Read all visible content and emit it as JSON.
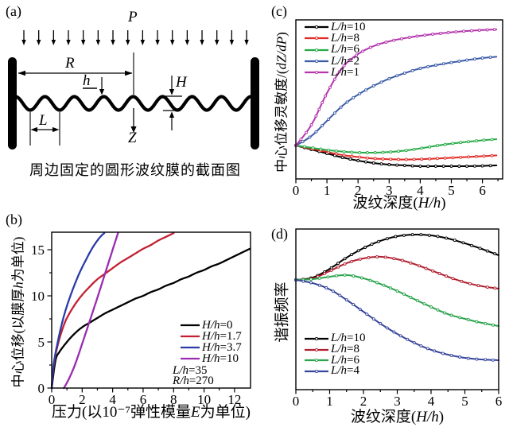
{
  "panel_a": {
    "letter": "(a)",
    "pressure_label": "P",
    "radius_label": "R",
    "thickness_label": "h",
    "depth_label": "H",
    "wavelength_label": "L",
    "deflection_label": "Z",
    "caption": "周边固定的圆形波纹膜的截面图"
  },
  "panel_b": {
    "letter": "(b)"
  },
  "panel_c": {
    "letter": "(c)"
  },
  "panel_d": {
    "letter": "(d)"
  },
  "chart_data": [
    {
      "panel": "b",
      "type": "line",
      "xlabel": "压力(以10⁻⁷弹性模量E为单位)",
      "ylabel": "中心位移(以膜厚h为单位)",
      "xlim": [
        0,
        13.05
      ],
      "ylim": [
        0,
        16.9
      ],
      "xticks": [
        0,
        2,
        4,
        6,
        8,
        10,
        12
      ],
      "yticks": [
        0,
        5,
        10,
        15
      ],
      "xminor": [
        1,
        3,
        5,
        7,
        9,
        11
      ],
      "yminor": [
        2.5,
        7.5,
        12.5
      ],
      "grid": false,
      "markers": false,
      "legend_position": "bottom-right",
      "legend_note": [
        "L/h=35",
        "R/h=270"
      ],
      "series": [
        {
          "name": "H/h=0",
          "color": "#000000",
          "x": [
            0,
            0.25,
            0.5,
            1,
            1.5,
            2,
            2.5,
            3,
            3.5,
            4,
            4.5,
            5,
            5.5,
            6,
            6.5,
            7,
            7.5,
            8,
            8.5,
            9,
            9.5,
            10,
            10.5,
            11,
            11.5,
            12,
            12.5,
            13
          ],
          "y": [
            0,
            3.0,
            3.9,
            5.0,
            5.9,
            6.6,
            7.1,
            7.6,
            8.1,
            8.5,
            8.9,
            9.3,
            9.7,
            10.0,
            10.4,
            10.7,
            11.1,
            11.4,
            11.8,
            12.1,
            12.5,
            12.8,
            13.2,
            13.5,
            13.9,
            14.3,
            14.7,
            15.1
          ]
        },
        {
          "name": "H/h=1.7",
          "color": "#c22133",
          "x": [
            0,
            0.1,
            0.25,
            0.5,
            0.75,
            1,
            1.5,
            2,
            2.5,
            3,
            3.5,
            4,
            4.5,
            5,
            5.5,
            6,
            6.5,
            7,
            7.5,
            8
          ],
          "y": [
            0,
            2.0,
            3.6,
            5.3,
            6.6,
            7.6,
            9.0,
            10.1,
            11.0,
            11.8,
            12.4,
            13.0,
            13.6,
            14.1,
            14.6,
            15.1,
            15.5,
            16.0,
            16.4,
            16.8
          ]
        },
        {
          "name": "H/h=3.7",
          "color": "#2b3ca8",
          "x": [
            0,
            0.1,
            0.25,
            0.5,
            0.75,
            1,
            1.25,
            1.5,
            1.75,
            2,
            2.25,
            2.5,
            2.75,
            3,
            3.25,
            3.45
          ],
          "y": [
            0,
            2.2,
            3.8,
            5.8,
            7.5,
            8.9,
            10.1,
            11.2,
            12.2,
            13.1,
            13.9,
            14.7,
            15.4,
            16.0,
            16.5,
            16.8
          ]
        },
        {
          "name": "H/h=10",
          "color": "#992cb0",
          "x": [
            0.8,
            1.1,
            1.5,
            2,
            2.5,
            3,
            3.5,
            4,
            4.35
          ],
          "y": [
            0,
            0.9,
            2.4,
            4.8,
            7.3,
            9.8,
            12.4,
            15.0,
            16.8
          ]
        }
      ]
    },
    {
      "panel": "c",
      "type": "line",
      "xlabel": "波纹深度(H/h)",
      "ylabel": "中心位移灵敏度/(dZ/dP)",
      "xlim": [
        0,
        6.65
      ],
      "ylim": [
        0,
        1
      ],
      "xticks": [
        0,
        1,
        2,
        3,
        4,
        5,
        6
      ],
      "yticks": [],
      "xminor": [
        0.5,
        1.5,
        2.5,
        3.5,
        4.5,
        5.5,
        6.5
      ],
      "yminor": [],
      "y_axis_unlabeled": true,
      "y_units": "normalized 0-1 of plot height (no tick labels in figure)",
      "grid": false,
      "markers": true,
      "legend_position": "top-left",
      "x_shared": [
        0,
        0.5,
        1,
        1.5,
        2,
        2.5,
        3,
        3.5,
        4,
        4.5,
        5,
        5.5,
        6,
        6.45
      ],
      "series": [
        {
          "name": "L/h=10",
          "color": "#000000",
          "y": [
            0.21,
            0.185,
            0.16,
            0.135,
            0.115,
            0.1,
            0.09,
            0.085,
            0.08,
            0.08,
            0.08,
            0.08,
            0.082,
            0.085
          ]
        },
        {
          "name": "L/h=8",
          "color": "#e12a26",
          "y": [
            0.21,
            0.19,
            0.17,
            0.15,
            0.138,
            0.128,
            0.124,
            0.122,
            0.124,
            0.128,
            0.133,
            0.138,
            0.143,
            0.148
          ]
        },
        {
          "name": "L/h=6",
          "color": "#29ab49",
          "y": [
            0.21,
            0.196,
            0.182,
            0.172,
            0.166,
            0.165,
            0.169,
            0.178,
            0.192,
            0.208,
            0.222,
            0.233,
            0.243,
            0.25
          ]
        },
        {
          "name": "L/h=2",
          "color": "#3c5ca8",
          "y": [
            0.21,
            0.27,
            0.365,
            0.46,
            0.53,
            0.585,
            0.63,
            0.665,
            0.695,
            0.715,
            0.732,
            0.747,
            0.76,
            0.768
          ]
        },
        {
          "name": "L/h=1",
          "color": "#b435ad",
          "y": [
            0.21,
            0.34,
            0.54,
            0.7,
            0.785,
            0.835,
            0.865,
            0.885,
            0.9,
            0.912,
            0.922,
            0.93,
            0.936,
            0.94
          ]
        }
      ]
    },
    {
      "panel": "d",
      "type": "line",
      "xlabel": "波纹深度(H/h)",
      "ylabel": "谐振频率",
      "xlim": [
        0,
        6
      ],
      "ylim": [
        0,
        1
      ],
      "xticks": [
        0,
        1,
        2,
        3,
        4,
        5,
        6
      ],
      "yticks": [],
      "xminor": [
        0.5,
        1.5,
        2.5,
        3.5,
        4.5,
        5.5
      ],
      "yminor": [],
      "y_axis_unlabeled": true,
      "y_units": "normalized 0-1 of plot height (no tick labels in figure)",
      "grid": false,
      "markers": true,
      "legend_position": "bottom-left",
      "x_shared": [
        0,
        0.5,
        1,
        1.5,
        2,
        2.5,
        3,
        3.5,
        4,
        4.5,
        5,
        5.5,
        6
      ],
      "series": [
        {
          "name": "L/h=10",
          "color": "#000000",
          "y": [
            0.683,
            0.698,
            0.752,
            0.822,
            0.881,
            0.926,
            0.955,
            0.965,
            0.96,
            0.941,
            0.911,
            0.876,
            0.837
          ]
        },
        {
          "name": "L/h=8",
          "color": "#b02031",
          "y": [
            0.683,
            0.693,
            0.738,
            0.787,
            0.817,
            0.827,
            0.812,
            0.782,
            0.743,
            0.703,
            0.668,
            0.644,
            0.629
          ]
        },
        {
          "name": "L/h=6",
          "color": "#2aa44d",
          "y": [
            0.683,
            0.688,
            0.703,
            0.713,
            0.693,
            0.658,
            0.614,
            0.564,
            0.515,
            0.47,
            0.441,
            0.416,
            0.396
          ]
        },
        {
          "name": "L/h=4",
          "color": "#36459b",
          "y": [
            0.683,
            0.663,
            0.624,
            0.559,
            0.485,
            0.411,
            0.347,
            0.292,
            0.248,
            0.218,
            0.198,
            0.188,
            0.183
          ]
        }
      ]
    }
  ]
}
